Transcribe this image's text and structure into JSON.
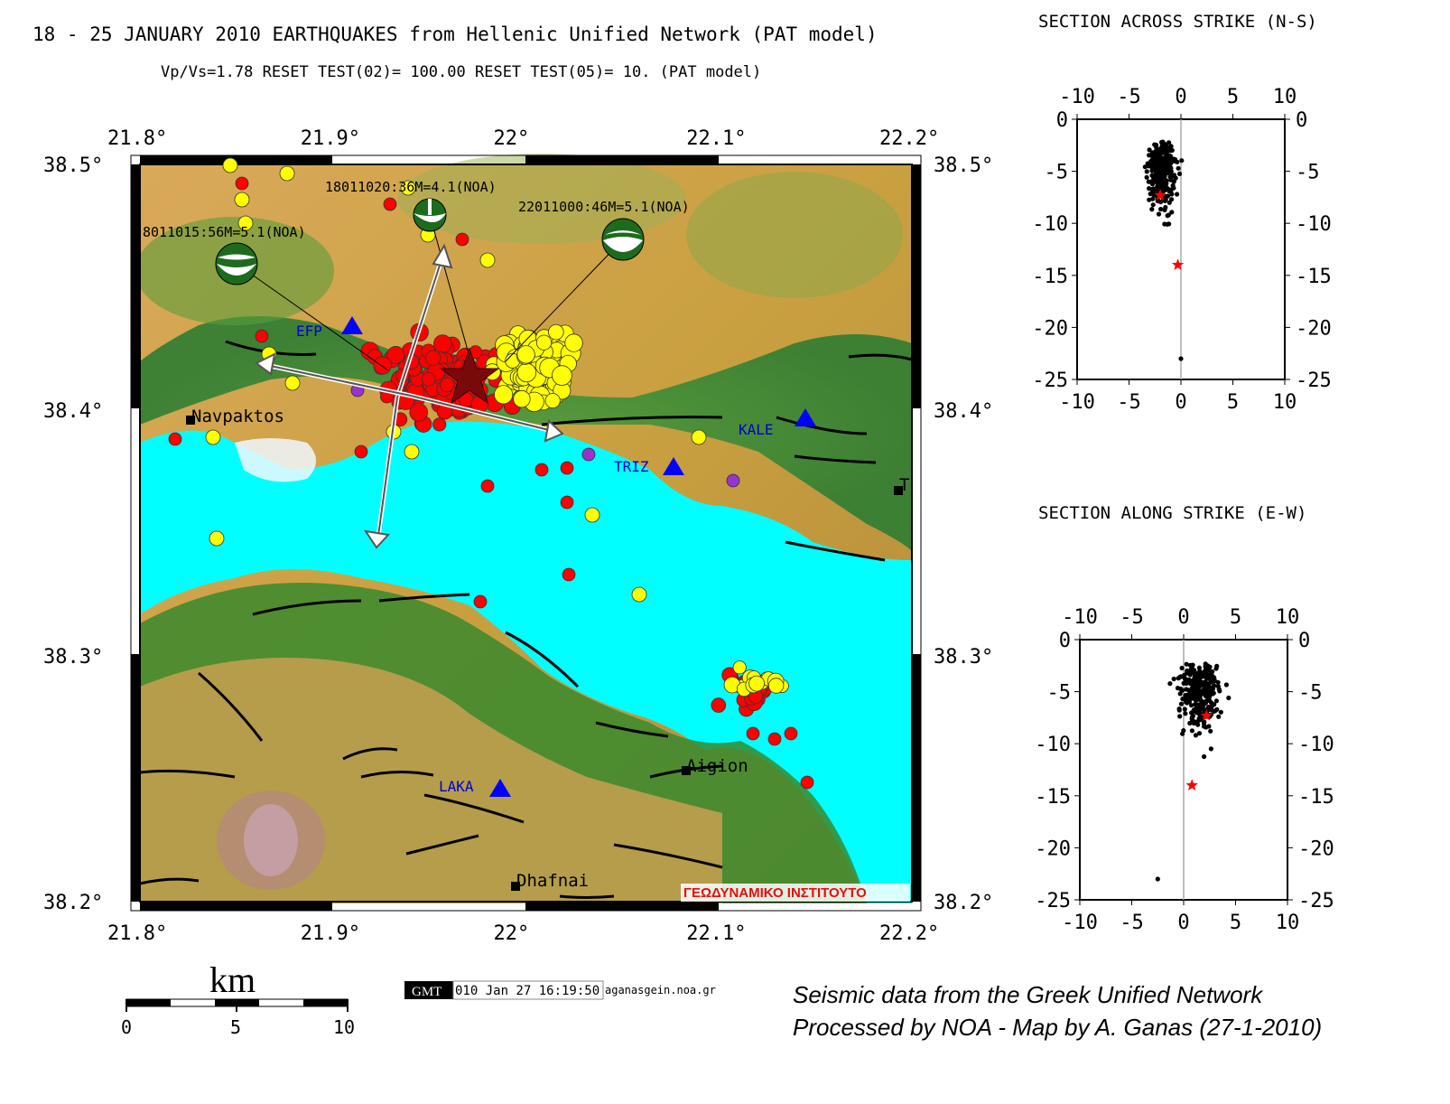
{
  "header": {
    "title": "18 - 25 JANUARY 2010 EARTHQUAKES from Hellenic Unified Network (PAT model)",
    "subtitle": "Vp/Vs=1.78 RESET TEST(02)= 100.00 RESET TEST(05)= 10. (PAT model)"
  },
  "map": {
    "lon_ticks": [
      "21.8°",
      "21.9°",
      "22°",
      "22.1°",
      "22.2°"
    ],
    "lat_ticks": [
      "38.5°",
      "38.4°",
      "38.3°",
      "38.2°"
    ],
    "lon_range": [
      21.8,
      22.2
    ],
    "lat_range": [
      38.2,
      38.5
    ],
    "colors": {
      "sea": "#00ffff",
      "event_red": "#ff0000",
      "event_yellow": "#ffff00",
      "event_purple": "#9933cc",
      "station": "#0000ff",
      "mainshock_star": "#7a0a0a",
      "fault": "#000000"
    },
    "focal_labels": [
      "8011015:56M=5.1(NOA)",
      "18011020:36M=4.1(NOA)",
      "22011000:46M=5.1(NOA)"
    ],
    "stations": [
      "EFP",
      "TRIZ",
      "KALE",
      "LAKA"
    ],
    "towns": [
      "Navpaktos",
      "Aigion",
      "Dhafnai",
      "T"
    ],
    "institute_label": "ΓΕΩΔΥΝΑΜΙΚΟ ΙΝΣΤΙΤΟΥΤΟ"
  },
  "scale_bar": {
    "unit": "km",
    "labels": [
      "0",
      "5",
      "10"
    ]
  },
  "gmt_stamp": {
    "badge": "GMT",
    "timestamp": "010 Jan 27 16:19:50",
    "user": "aganasgein.noa.gr"
  },
  "credits": {
    "line1": "Seismic data from the Greek Unified Network",
    "line2": "Processed by NOA - Map by A. Ganas (27-1-2010)"
  },
  "sections": [
    {
      "title": "SECTION ACROSS STRIKE (N-S)",
      "x_ticks": [
        "-10",
        "-5",
        "0",
        "5",
        "10"
      ],
      "y_ticks": [
        "0",
        "-5",
        "-10",
        "-15",
        "-20",
        "-25"
      ],
      "x_range": [
        -10,
        10
      ],
      "y_range": [
        -25,
        0
      ],
      "stars": [
        {
          "x": -2,
          "y": -7.3
        },
        {
          "x": -0.3,
          "y": -14
        }
      ]
    },
    {
      "title": "SECTION ALONG STRIKE (E-W)",
      "x_ticks": [
        "-10",
        "-5",
        "0",
        "5",
        "10"
      ],
      "y_ticks": [
        "0",
        "-5",
        "-10",
        "-15",
        "-20",
        "-25"
      ],
      "x_range": [
        -10,
        10
      ],
      "y_range": [
        -25,
        0
      ],
      "stars": [
        {
          "x": 2.2,
          "y": -7.3
        },
        {
          "x": 0.8,
          "y": -14
        }
      ]
    }
  ]
}
